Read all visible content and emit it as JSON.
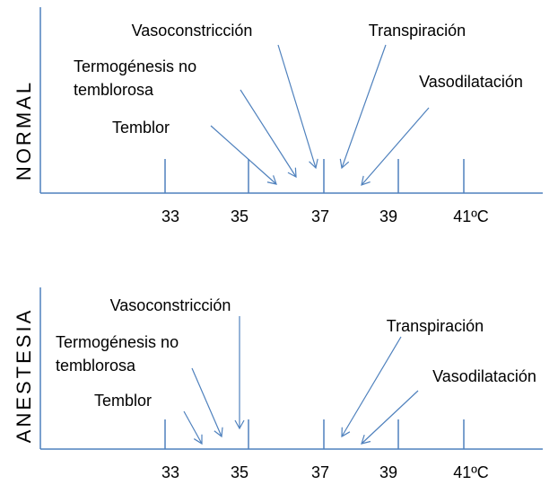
{
  "panels": [
    {
      "label": "NORMAL",
      "ticks": [
        "33",
        "35",
        "37",
        "39",
        "41ºC"
      ],
      "annotations": [
        {
          "lines": [
            "Vasoconstricción"
          ]
        },
        {
          "lines": [
            "Termogénesis no",
            "temblorosa"
          ]
        },
        {
          "lines": [
            "Temblor"
          ]
        },
        {
          "lines": [
            "Transpiración"
          ]
        },
        {
          "lines": [
            "Vasodilatación"
          ]
        }
      ]
    },
    {
      "label": "ANESTESIA",
      "ticks": [
        "33",
        "35",
        "37",
        "39",
        "41ºC"
      ],
      "annotations": [
        {
          "lines": [
            "Vasoconstricción"
          ]
        },
        {
          "lines": [
            "Termogénesis no",
            "temblorosa"
          ]
        },
        {
          "lines": [
            "Temblor"
          ]
        },
        {
          "lines": [
            "Transpiración"
          ]
        },
        {
          "lines": [
            "Vasodilatación"
          ]
        }
      ]
    }
  ]
}
